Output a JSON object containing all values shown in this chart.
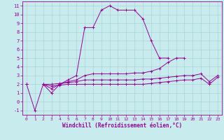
{
  "xlabel": "Windchill (Refroidissement éolien,°C)",
  "background_color": "#c8eced",
  "grid_color": "#aad4d4",
  "line_color": "#990099",
  "xlim": [
    -0.5,
    23.5
  ],
  "ylim": [
    -1.5,
    11.5
  ],
  "xticks": [
    0,
    1,
    2,
    3,
    4,
    5,
    6,
    7,
    8,
    9,
    10,
    11,
    12,
    13,
    14,
    15,
    16,
    17,
    18,
    19,
    20,
    21,
    22,
    23
  ],
  "yticks": [
    -1,
    0,
    1,
    2,
    3,
    4,
    5,
    6,
    7,
    8,
    9,
    10,
    11
  ],
  "series": [
    [
      2.0,
      -1.0,
      2.0,
      1.0,
      2.0,
      2.5,
      3.0,
      8.5,
      8.5,
      10.5,
      11.0,
      10.5,
      10.5,
      10.5,
      9.5,
      7.0,
      5.0,
      5.0,
      null,
      null,
      null,
      null,
      null,
      null
    ],
    [
      2.0,
      null,
      2.0,
      1.5,
      2.0,
      2.3,
      2.5,
      3.0,
      3.2,
      3.2,
      3.2,
      3.2,
      3.2,
      3.3,
      3.3,
      3.5,
      3.8,
      4.5,
      5.0,
      5.0,
      null,
      null,
      null,
      null
    ],
    [
      2.0,
      null,
      2.0,
      2.0,
      2.1,
      2.2,
      2.3,
      2.5,
      2.5,
      2.5,
      2.5,
      2.5,
      2.5,
      2.5,
      2.6,
      2.6,
      2.7,
      2.8,
      2.9,
      3.0,
      3.0,
      3.2,
      2.3,
      3.0
    ],
    [
      2.0,
      null,
      2.0,
      1.8,
      1.9,
      2.0,
      2.0,
      2.0,
      2.0,
      2.0,
      2.0,
      2.0,
      2.0,
      2.0,
      2.0,
      2.1,
      2.2,
      2.3,
      2.4,
      2.5,
      2.5,
      2.7,
      2.0,
      2.8
    ]
  ]
}
